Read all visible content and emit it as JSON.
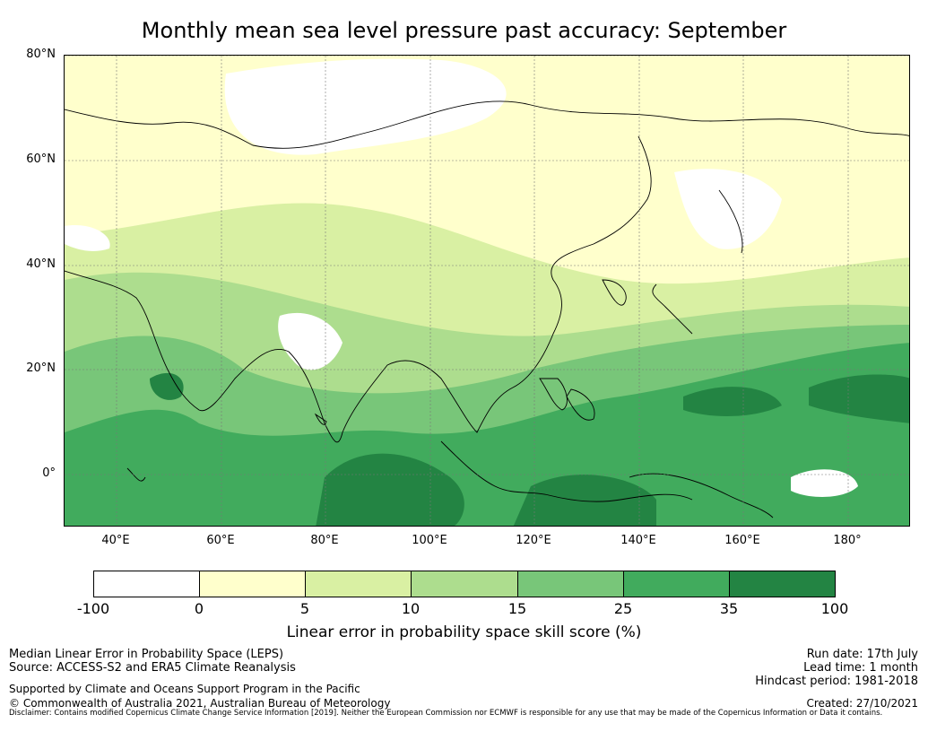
{
  "title": "Monthly mean sea level pressure past accuracy: September",
  "map": {
    "lat_labels": [
      "80°N",
      "60°N",
      "40°N",
      "20°N",
      "0°"
    ],
    "lon_labels": [
      "40°E",
      "60°E",
      "80°E",
      "100°E",
      "120°E",
      "140°E",
      "160°E",
      "180°"
    ],
    "extent": {
      "lon_min": 30,
      "lon_max": 192,
      "lat_min": -10,
      "lat_max": 80
    }
  },
  "colorbar": {
    "ticks": [
      "-100",
      "0",
      "5",
      "10",
      "15",
      "25",
      "35",
      "100"
    ],
    "colors": [
      "#ffffff",
      "#ffffcc",
      "#d9f0a3",
      "#addd8e",
      "#78c679",
      "#41ab5d",
      "#238443"
    ],
    "label": "Linear error in probability space skill score (%)"
  },
  "footer": {
    "left_line1": "Median Linear Error in Probability Space (LEPS)",
    "left_line2": "Source: ACCESS-S2 and ERA5 Climate Reanalysis",
    "support": "Supported by Climate and Oceans Support Program in the Pacific",
    "copyright": "© Commonwealth of Australia 2021, Australian Bureau of Meteorology",
    "run_date": "Run date: 17th July",
    "lead_time": "Lead time: 1 month",
    "hindcast": "Hindcast period: 1981-2018",
    "created": "Created: 27/10/2021",
    "disclaimer": "Disclaimer: Contains modified Copernicus Climate Change Service Information [2019]. Neither the European Commission nor ECMWF is responsible for any use that may be made of the Copernicus Information or Data it contains."
  }
}
